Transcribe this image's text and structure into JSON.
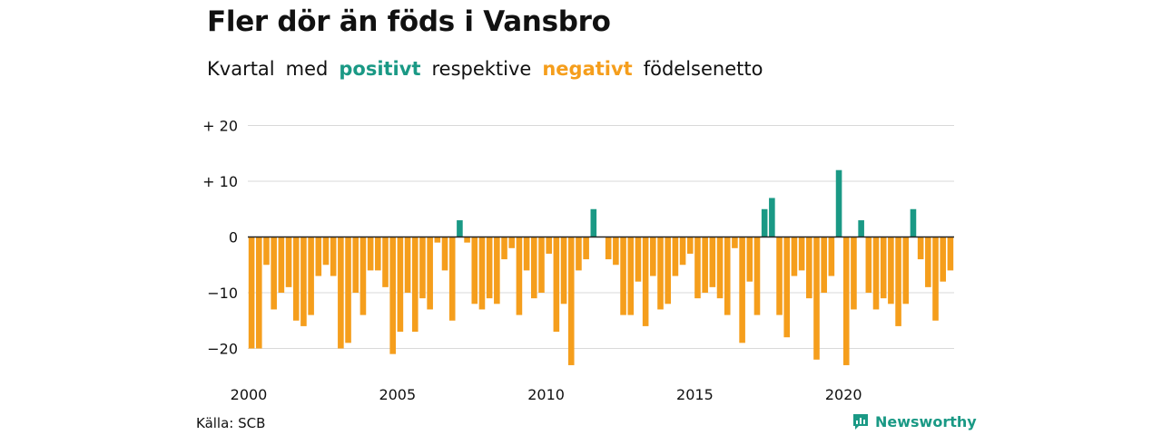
{
  "title": "Fler dör än föds i Vansbro",
  "subtitle": {
    "w1": "Kvartal",
    "w2": "med",
    "positive": "positivt",
    "w3": "respektive",
    "negative": "negativt",
    "w4": "födelsenetto"
  },
  "source": "Källa: SCB",
  "brand": "Newsworthy",
  "colors": {
    "positive": "#1a9985",
    "negative": "#f59e1c",
    "grid": "#d9d9d9"
  },
  "chart_data": {
    "type": "bar",
    "ylim": [
      -23,
      20
    ],
    "y_ticks": [
      {
        "value": 20,
        "label": "+ 20"
      },
      {
        "value": 10,
        "label": "+ 10"
      },
      {
        "value": 0,
        "label": "0"
      },
      {
        "value": -10,
        "label": "−10"
      },
      {
        "value": -20,
        "label": "−20"
      }
    ],
    "x_tick_labels": [
      "2000",
      "2005",
      "2010",
      "2015",
      "2020"
    ],
    "values": [
      -20,
      -20,
      -5,
      -13,
      -10,
      -9,
      -15,
      -16,
      -14,
      -7,
      -5,
      -7,
      -20,
      -19,
      -10,
      -14,
      -6,
      -6,
      -9,
      -21,
      -17,
      -10,
      -17,
      -11,
      -13,
      -1,
      -6,
      -15,
      3,
      -1,
      -12,
      -13,
      -11,
      -12,
      -4,
      -2,
      -14,
      -6,
      -11,
      -10,
      -3,
      -17,
      -12,
      -23,
      -6,
      -4,
      5,
      0,
      -4,
      -5,
      -14,
      -14,
      -8,
      -16,
      -7,
      -13,
      -12,
      -7,
      -5,
      -3,
      -11,
      -10,
      -9,
      -11,
      -14,
      -2,
      -19,
      -8,
      -14,
      5,
      7,
      -14,
      -18,
      -7,
      -6,
      -11,
      -22,
      -10,
      -7,
      12,
      -23,
      -13,
      3,
      -10,
      -13,
      -11,
      -12,
      -16,
      -12,
      5,
      -4,
      -9,
      -15,
      -8,
      -6
    ]
  }
}
